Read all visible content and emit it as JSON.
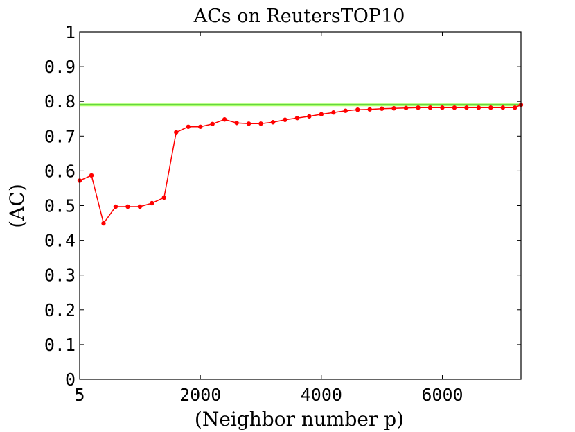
{
  "chart_data": {
    "type": "line",
    "title": "ACs on ReutersTOP10",
    "xlabel": "(Neighbor number p)",
    "ylabel": "(AC)",
    "xlim": [
      5,
      7300
    ],
    "ylim": [
      0,
      1
    ],
    "xticks": [
      {
        "value": 5,
        "label": "5"
      },
      {
        "value": 2000,
        "label": "2000"
      },
      {
        "value": 4000,
        "label": "4000"
      },
      {
        "value": 6000,
        "label": "6000"
      }
    ],
    "yticks": [
      {
        "value": 0,
        "label": "0"
      },
      {
        "value": 0.1,
        "label": "0.1"
      },
      {
        "value": 0.2,
        "label": "0.2"
      },
      {
        "value": 0.3,
        "label": "0.3"
      },
      {
        "value": 0.4,
        "label": "0.4"
      },
      {
        "value": 0.5,
        "label": "0.5"
      },
      {
        "value": 0.6,
        "label": "0.6"
      },
      {
        "value": 0.7,
        "label": "0.7"
      },
      {
        "value": 0.8,
        "label": "0.8"
      },
      {
        "value": 0.9,
        "label": "0.9"
      },
      {
        "value": 1,
        "label": "1"
      }
    ],
    "grid": false,
    "series": [
      {
        "color": "#ff0000",
        "marker": "circle",
        "x": [
          5,
          200,
          400,
          600,
          800,
          1000,
          1200,
          1400,
          1600,
          1800,
          2000,
          2200,
          2400,
          2600,
          2800,
          3000,
          3200,
          3400,
          3600,
          3800,
          4000,
          4200,
          4400,
          4600,
          4800,
          5000,
          5200,
          5400,
          5600,
          5800,
          6000,
          6200,
          6400,
          6600,
          6800,
          7000,
          7200,
          7300
        ],
        "y": [
          0.572,
          0.587,
          0.449,
          0.497,
          0.497,
          0.497,
          0.507,
          0.523,
          0.711,
          0.727,
          0.727,
          0.735,
          0.748,
          0.738,
          0.736,
          0.736,
          0.74,
          0.747,
          0.752,
          0.757,
          0.763,
          0.768,
          0.773,
          0.776,
          0.777,
          0.779,
          0.78,
          0.781,
          0.782,
          0.782,
          0.782,
          0.782,
          0.782,
          0.782,
          0.782,
          0.782,
          0.782,
          0.79
        ]
      },
      {
        "color": "#22aa22",
        "marker": "none",
        "x": [
          5,
          7300
        ],
        "y": [
          0.79,
          0.79
        ]
      }
    ],
    "reference_line_highlight": "#aaff66"
  }
}
